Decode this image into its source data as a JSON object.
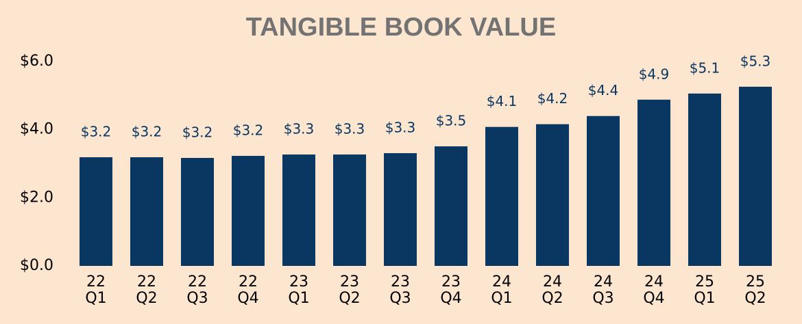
{
  "chart_data": {
    "type": "bar",
    "title": "TANGIBLE BOOK VALUE",
    "categories": [
      "22 Q1",
      "22 Q2",
      "22 Q3",
      "22 Q4",
      "23 Q1",
      "23 Q2",
      "23 Q3",
      "23 Q4",
      "24 Q1",
      "24 Q2",
      "24 Q3",
      "24 Q4",
      "25 Q1",
      "25 Q2"
    ],
    "values": [
      3.19,
      3.19,
      3.17,
      3.23,
      3.27,
      3.27,
      3.31,
      3.51,
      4.08,
      4.16,
      4.4,
      4.88,
      5.06,
      5.26
    ],
    "value_labels": [
      "$3.2",
      "$3.2",
      "$3.2",
      "$3.2",
      "$3.3",
      "$3.3",
      "$3.3",
      "$3.5",
      "$4.1",
      "$4.2",
      "$4.4",
      "$4.9",
      "$5.1",
      "$5.3"
    ],
    "color": "#0a3662",
    "ylim": [
      0,
      6
    ],
    "yticks": [
      {
        "value": 0,
        "label": "$0.0"
      },
      {
        "value": 2,
        "label": "$2.0"
      },
      {
        "value": 4,
        "label": "$4.0"
      },
      {
        "value": 6,
        "label": "$6.0"
      }
    ],
    "grid": false
  }
}
